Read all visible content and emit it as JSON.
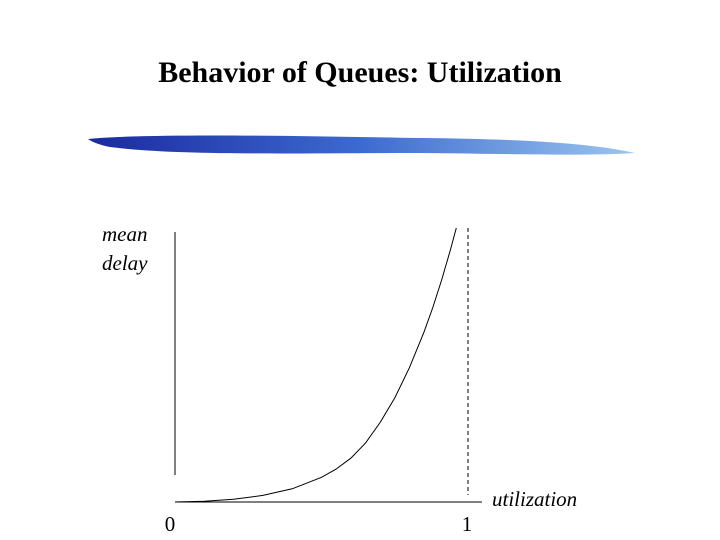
{
  "slide": {
    "title": "Behavior of Queues: Utilization"
  },
  "colors": {
    "brush_dark": "#1a2aa0",
    "brush_mid": "#3d6ad0",
    "brush_light": "#9cc6ee",
    "axis": "#000000",
    "curve": "#000000"
  },
  "chart_data": {
    "type": "line",
    "title": "",
    "xlabel": "utilization",
    "ylabel_lines": [
      "mean",
      "delay"
    ],
    "xlim": [
      0,
      1
    ],
    "xticks": [
      {
        "value": 0,
        "label": "0"
      },
      {
        "value": 1,
        "label": "1"
      }
    ],
    "asymptote": {
      "x": 1,
      "style": "dashed"
    },
    "series": [
      {
        "x": [
          0.0,
          0.1,
          0.2,
          0.3,
          0.4,
          0.5,
          0.55,
          0.6,
          0.65,
          0.7,
          0.75,
          0.8,
          0.85,
          0.88,
          0.91,
          0.94,
          0.96
        ],
        "y": [
          0.0,
          0.003,
          0.01,
          0.024,
          0.048,
          0.09,
          0.12,
          0.16,
          0.215,
          0.29,
          0.38,
          0.49,
          0.62,
          0.71,
          0.81,
          0.92,
          1.0
        ]
      }
    ],
    "grid": false,
    "legend": "none"
  }
}
